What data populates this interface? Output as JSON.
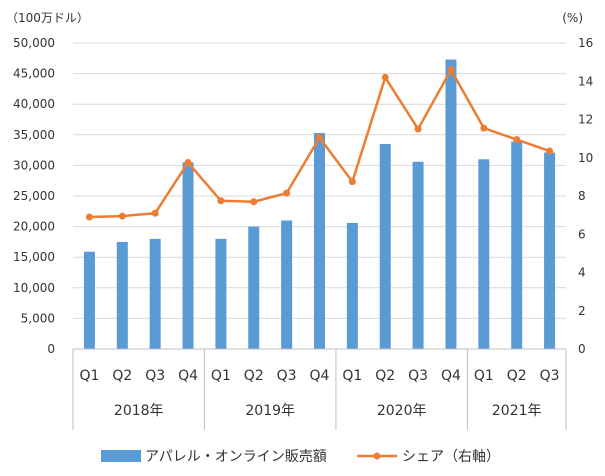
{
  "chart_data": {
    "type": "bar",
    "y_left_unit": "（100万ドル）",
    "y_right_unit": "(%)",
    "categories": [
      "Q1",
      "Q2",
      "Q3",
      "Q4",
      "Q1",
      "Q2",
      "Q3",
      "Q4",
      "Q1",
      "Q2",
      "Q3",
      "Q4",
      "Q1",
      "Q2",
      "Q3"
    ],
    "year_groups": [
      {
        "label": "2018年",
        "count": 4
      },
      {
        "label": "2019年",
        "count": 4
      },
      {
        "label": "2020年",
        "count": 4
      },
      {
        "label": "2021年",
        "count": 3
      }
    ],
    "y_left": {
      "min": 0,
      "max": 50000,
      "step": 5000,
      "ticks": [
        "0",
        "5,000",
        "10,000",
        "15,000",
        "20,000",
        "25,000",
        "30,000",
        "35,000",
        "40,000",
        "45,000",
        "50,000"
      ]
    },
    "y_right": {
      "min": 0,
      "max": 16,
      "step": 2,
      "ticks": [
        "0",
        "2",
        "4",
        "6",
        "8",
        "10",
        "12",
        "14",
        "16"
      ]
    },
    "series": [
      {
        "name": "アパレル・オンライン販売額",
        "kind": "bar",
        "axis": "left",
        "color": "#5b9bd5",
        "values": [
          15900,
          17500,
          18000,
          30500,
          18000,
          20000,
          21000,
          35300,
          20600,
          33500,
          30600,
          47300,
          31000,
          33900,
          32100
        ]
      },
      {
        "name": "シェア（右軸）",
        "kind": "line",
        "axis": "right",
        "color": "#ed7d31",
        "values": [
          6.9,
          6.95,
          7.1,
          9.75,
          7.75,
          7.7,
          8.15,
          11.05,
          8.75,
          14.2,
          11.5,
          14.6,
          11.55,
          10.95,
          10.35
        ]
      }
    ],
    "grid": true,
    "legend_position": "bottom"
  }
}
